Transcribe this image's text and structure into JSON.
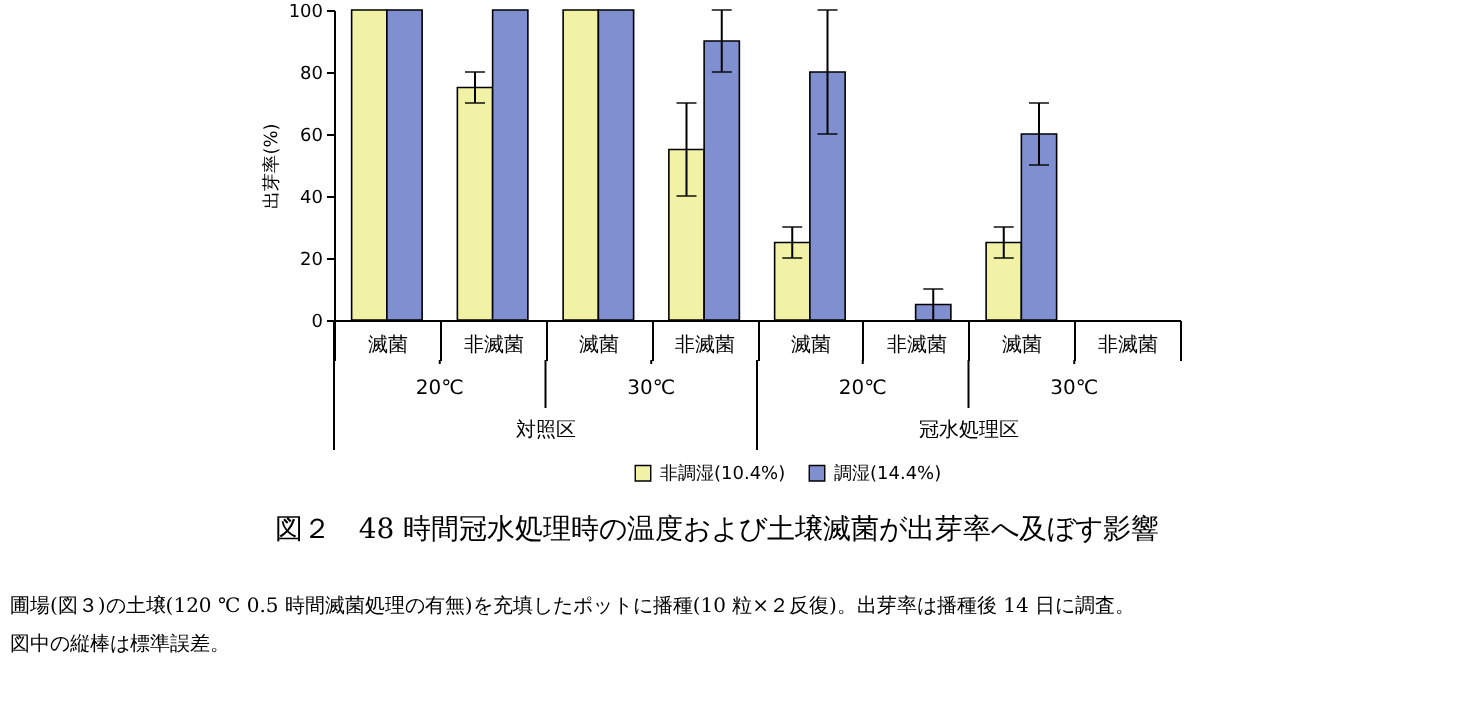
{
  "chart_data": {
    "type": "bar",
    "title": "図２　48 時間冠水処理時の温度および土壌滅菌が出芽率へ及ぼす影響",
    "ylabel": "出芽率(%)",
    "categories": [
      "滅菌",
      "非滅菌",
      "滅菌",
      "非滅菌",
      "滅菌",
      "非滅菌",
      "滅菌",
      "非滅菌"
    ],
    "series": [
      {
        "name": "非調湿(10.4%)",
        "color": "#f2f2a6",
        "values": [
          100,
          75,
          100,
          55,
          25,
          0,
          25,
          0
        ],
        "errors": [
          null,
          5,
          null,
          15,
          5,
          null,
          5,
          null
        ]
      },
      {
        "name": "調湿(14.4%)",
        "color": "#7f8fd0",
        "values": [
          100,
          100,
          100,
          90,
          80,
          5,
          60,
          0
        ],
        "errors": [
          null,
          null,
          null,
          10,
          20,
          5,
          10,
          null
        ]
      }
    ],
    "ylim": [
      0,
      100
    ],
    "yticks": [
      0,
      20,
      40,
      60,
      80,
      100
    ],
    "grid": false,
    "legend": "bottom",
    "annotations": [
      "20℃",
      "30℃",
      "20℃",
      "30℃",
      "対照区",
      "冠水処理区",
      "圃場(図３)の土壌(120 ℃ 0.5 時間滅菌処理の有無)を充填したポットに播種(10 粒×２反復)。出芽率は播種後 14 日に調査。",
      "図中の縦棒は標準誤差。"
    ]
  }
}
